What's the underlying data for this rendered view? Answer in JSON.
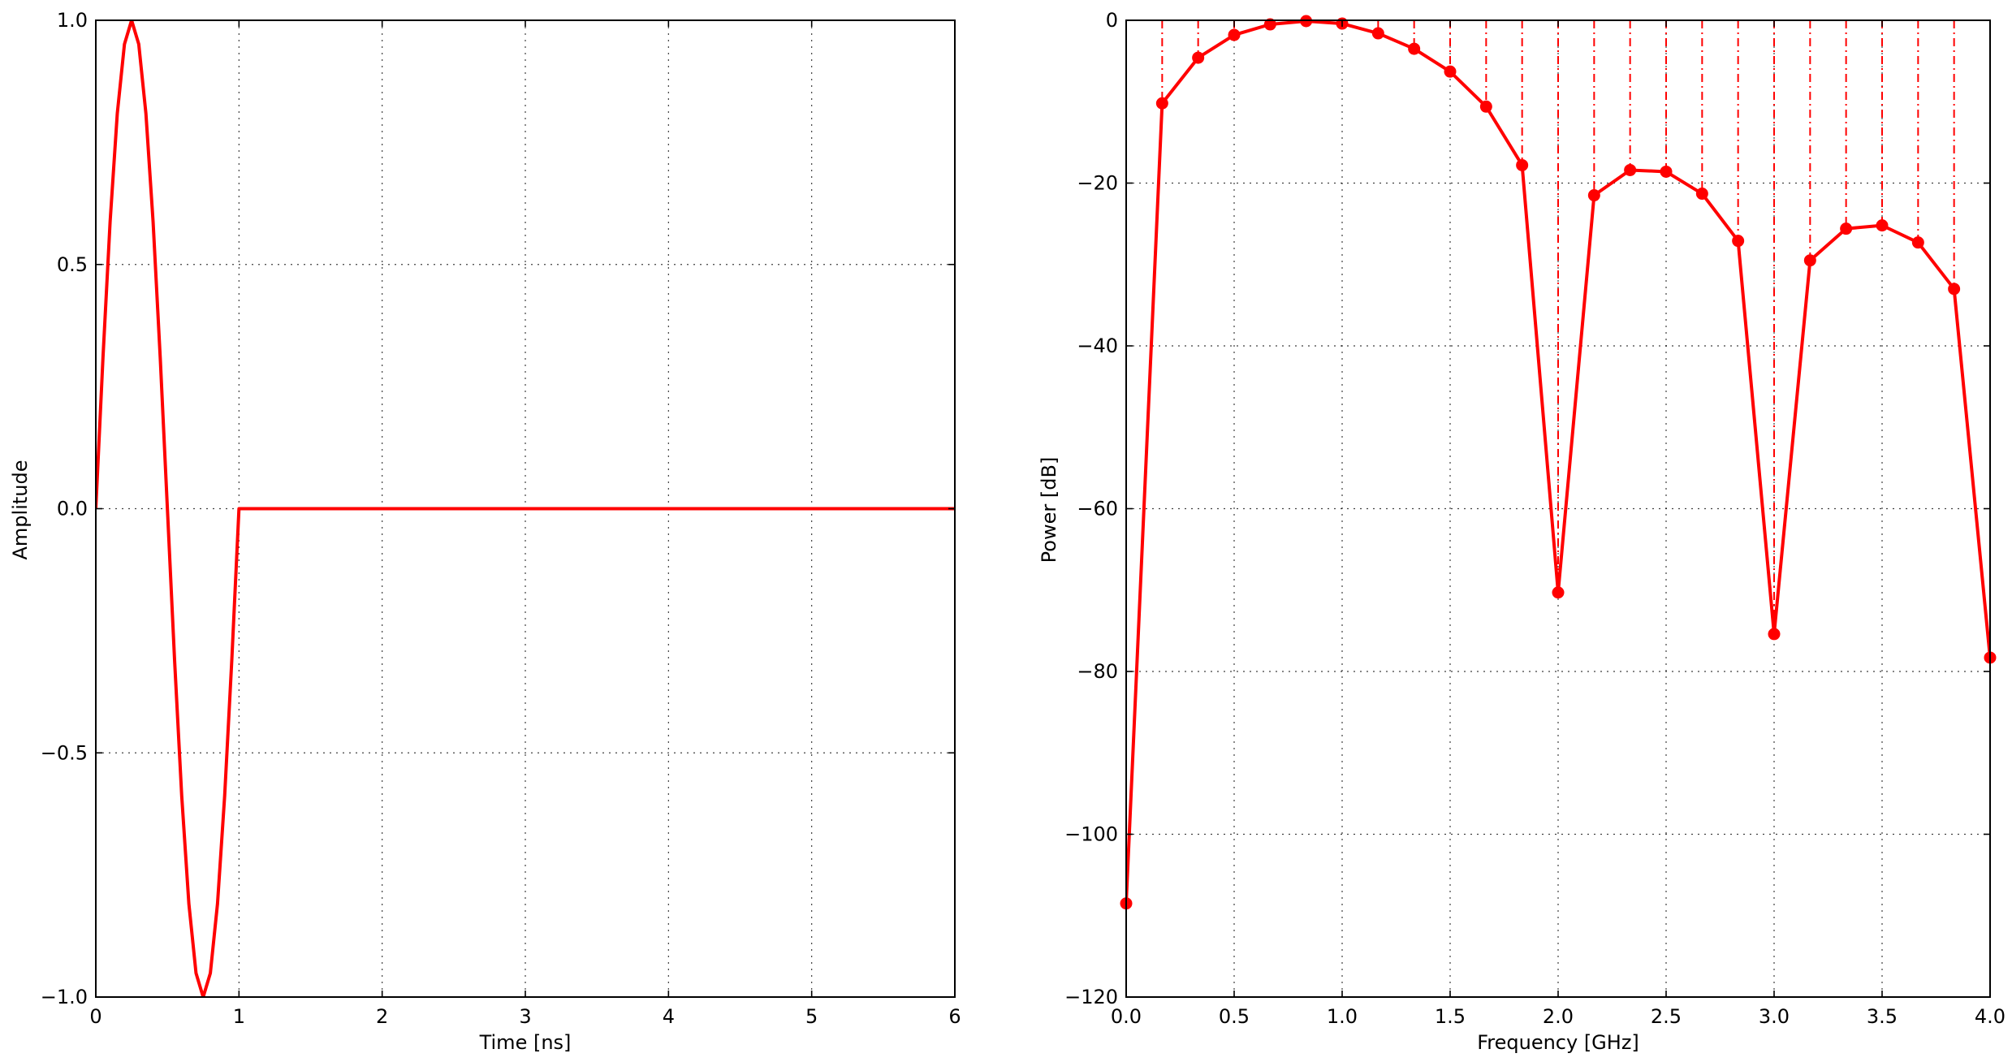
{
  "colors": {
    "series": "#ff0000",
    "stem": "#ff0000"
  },
  "chart_data": [
    {
      "type": "line",
      "title": "",
      "xlabel": "Time [ns]",
      "ylabel": "Amplitude",
      "xlim": [
        0,
        6
      ],
      "ylim": [
        -1,
        1
      ],
      "grid": true,
      "x_ticks": [
        {
          "value": 0,
          "label": "0"
        },
        {
          "value": 1,
          "label": "1"
        },
        {
          "value": 2,
          "label": "2"
        },
        {
          "value": 3,
          "label": "3"
        },
        {
          "value": 4,
          "label": "4"
        },
        {
          "value": 5,
          "label": "5"
        },
        {
          "value": 6,
          "label": "6"
        }
      ],
      "y_ticks": [
        {
          "value": -1.0,
          "label": "−1.0"
        },
        {
          "value": -0.5,
          "label": "−0.5"
        },
        {
          "value": 0.0,
          "label": "0.0"
        },
        {
          "value": 0.5,
          "label": "0.5"
        },
        {
          "value": 1.0,
          "label": "1.0"
        }
      ],
      "series": [
        {
          "x": [
            0,
            0.05,
            0.1,
            0.15,
            0.2,
            0.25,
            0.3,
            0.35,
            0.4,
            0.45,
            0.5,
            0.55,
            0.6,
            0.65,
            0.7,
            0.75,
            0.8,
            0.85,
            0.9,
            0.95,
            1.0,
            1.0,
            6.0
          ],
          "y": [
            0,
            0.309,
            0.588,
            0.809,
            0.951,
            1.0,
            0.951,
            0.809,
            0.588,
            0.309,
            0,
            -0.309,
            -0.588,
            -0.809,
            -0.951,
            -1.0,
            -0.951,
            -0.809,
            -0.588,
            -0.309,
            0,
            0,
            0
          ]
        }
      ]
    },
    {
      "type": "line",
      "title": "",
      "xlabel": "Frequency [GHz]",
      "ylabel": "Power [dB]",
      "xlim": [
        0,
        4
      ],
      "ylim": [
        -120,
        0
      ],
      "grid": true,
      "markers": true,
      "stems": true,
      "x_ticks": [
        {
          "value": 0.0,
          "label": "0.0"
        },
        {
          "value": 0.5,
          "label": "0.5"
        },
        {
          "value": 1.0,
          "label": "1.0"
        },
        {
          "value": 1.5,
          "label": "1.5"
        },
        {
          "value": 2.0,
          "label": "2.0"
        },
        {
          "value": 2.5,
          "label": "2.5"
        },
        {
          "value": 3.0,
          "label": "3.0"
        },
        {
          "value": 3.5,
          "label": "3.5"
        },
        {
          "value": 4.0,
          "label": "4.0"
        }
      ],
      "y_ticks": [
        {
          "value": 0,
          "label": "0"
        },
        {
          "value": -20,
          "label": "−20"
        },
        {
          "value": -40,
          "label": "−40"
        },
        {
          "value": -60,
          "label": "−60"
        },
        {
          "value": -80,
          "label": "−80"
        },
        {
          "value": -100,
          "label": "−100"
        },
        {
          "value": -120,
          "label": "−120"
        }
      ],
      "series": [
        {
          "x": [
            0.0,
            0.1667,
            0.3333,
            0.5,
            0.6667,
            0.8333,
            1.0,
            1.1667,
            1.3333,
            1.5,
            1.6667,
            1.8333,
            2.0,
            2.1667,
            2.3333,
            2.5,
            2.6667,
            2.8333,
            3.0,
            3.1667,
            3.3333,
            3.5,
            3.6667,
            3.8333,
            4.0
          ],
          "y": [
            -108.5,
            -10.2,
            -4.6,
            -1.8,
            -0.5,
            -0.1,
            -0.4,
            -1.6,
            -3.5,
            -6.3,
            -10.6,
            -17.8,
            -70.3,
            -21.5,
            -18.4,
            -18.6,
            -21.3,
            -27.1,
            -75.4,
            -29.5,
            -25.6,
            -25.2,
            -27.3,
            -33.0,
            -78.3
          ]
        }
      ]
    }
  ]
}
